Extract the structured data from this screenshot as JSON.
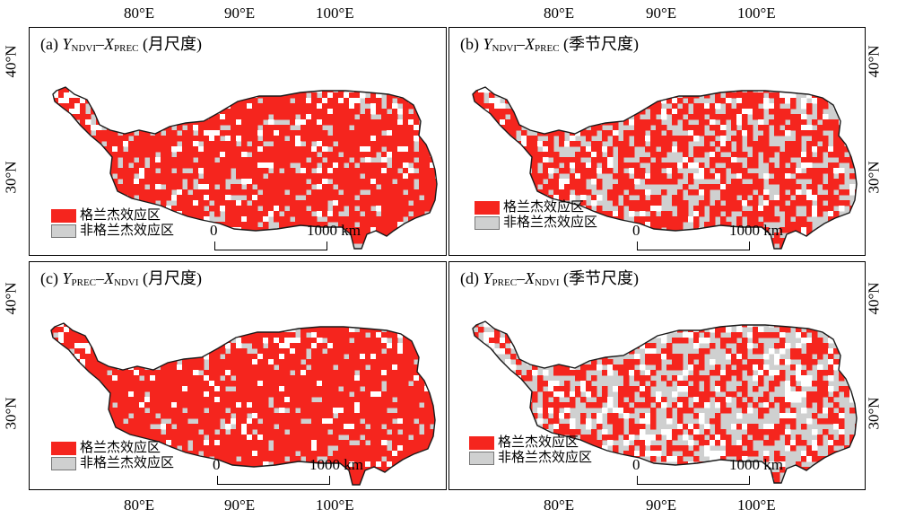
{
  "axes": {
    "lon_labels": [
      "80°E",
      "90°E",
      "100°E"
    ],
    "lat_labels": [
      "40°N",
      "30°N"
    ]
  },
  "colors": {
    "effect": "#f5251e",
    "non_effect": "#cfd0d0",
    "nodata": "#ffffff",
    "boundary": "#1a1a1a"
  },
  "legend": {
    "effect_label": "格兰杰效应区",
    "non_effect_label": "非格兰杰效应区"
  },
  "scalebar": {
    "start": "0",
    "end": "1000 km"
  },
  "panels": [
    {
      "id": "a",
      "prefix": "(a) ",
      "y": "Y",
      "y_sub": "NDVI",
      "dash": "–",
      "x": "X",
      "x_sub": "PREC",
      "scale": " (月尺度)",
      "effect_share": 0.8,
      "gray_share": 0.1
    },
    {
      "id": "b",
      "prefix": "(b) ",
      "y": "Y",
      "y_sub": "NDVI",
      "dash": "–",
      "x": "X",
      "x_sub": "PREC",
      "scale": " (季节尺度)",
      "effect_share": 0.62,
      "gray_share": 0.18
    },
    {
      "id": "c",
      "prefix": "(c) ",
      "y": "Y",
      "y_sub": "PREC",
      "dash": "–",
      "x": "X",
      "x_sub": "NDVI",
      "scale": " (月尺度)",
      "effect_share": 0.9,
      "gray_share": 0.03
    },
    {
      "id": "d",
      "prefix": "(d) ",
      "y": "Y",
      "y_sub": "PREC",
      "dash": "–",
      "x": "X",
      "x_sub": "NDVI",
      "scale": " (季节尺度)",
      "effect_share": 0.5,
      "gray_share": 0.35
    }
  ]
}
